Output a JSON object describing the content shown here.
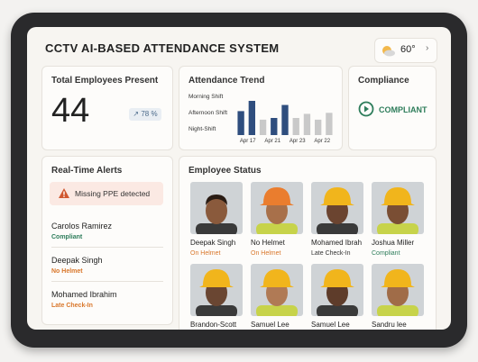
{
  "header": {
    "title": "CCTV AI-BASED ATTENDANCE SYSTEM",
    "weather": "60°"
  },
  "present": {
    "title": "Total Employees Present",
    "count": "44",
    "rate": "78 %"
  },
  "trend": {
    "title": "Attendance Trend",
    "shifts": [
      "Morning Shift",
      "Afternoon Shift",
      "Night-Shift"
    ],
    "dates": [
      "Apr 17",
      "Apr 21",
      "Apr 23",
      "Apr 22"
    ],
    "ylim": [
      0,
      100
    ],
    "series": [
      {
        "color": "#2f4e7e",
        "values": [
          70,
          100,
          null,
          50,
          88,
          null,
          null,
          null,
          null
        ]
      },
      {
        "color": "#c9c9c9",
        "values": [
          null,
          null,
          45,
          null,
          null,
          50,
          62,
          45,
          65
        ]
      }
    ]
  },
  "compliance": {
    "title": "Compliance",
    "status": "COMPLIANT"
  },
  "alerts": {
    "title": "Real-Time Alerts",
    "banner": "Missing PPE detected",
    "items": [
      {
        "name": "Carolos Ramirez",
        "status": "Compliant",
        "color": "#2e7d5b"
      },
      {
        "name": "Deepak Singh",
        "status": "No Helmet",
        "color": "#d9772b"
      },
      {
        "name": "Mohamed Ibrahim",
        "status": "Late Check-In",
        "color": "#d9772b"
      }
    ]
  },
  "employees": {
    "title": "Employee Status",
    "items": [
      {
        "name": "Deepak Singh",
        "status": "On Helmet",
        "color": "#d9772b"
      },
      {
        "name": "No Helmet",
        "status": "On Helmet",
        "color": "#d9772b"
      },
      {
        "name": "Mohamed Ibrah",
        "status": "Late Check-In",
        "color": "#333333"
      },
      {
        "name": "Joshua Miller",
        "status": "Compliant",
        "color": "#2e7d5b"
      },
      {
        "name": "Brandon-Scott"
      },
      {
        "name": "Samuel Lee"
      },
      {
        "name": "Samuel Lee"
      },
      {
        "name": "Sandru lee"
      }
    ]
  }
}
